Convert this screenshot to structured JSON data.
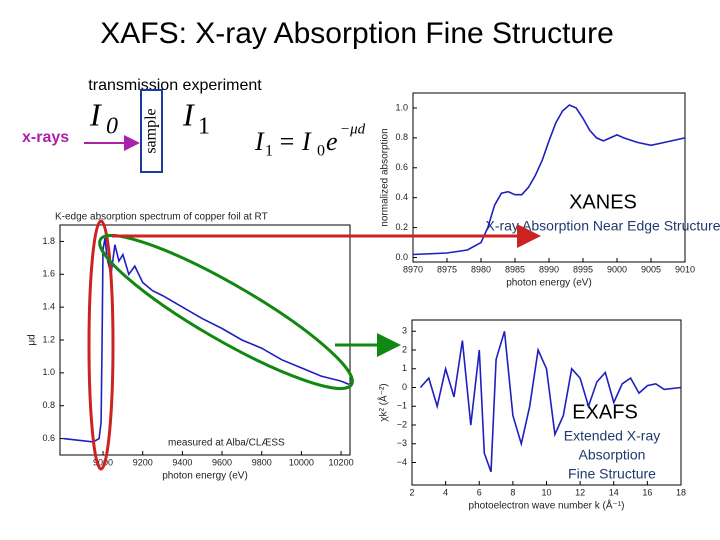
{
  "title": "XAFS: X-ray Absorption Fine Structure",
  "setup": {
    "label": "transmission experiment",
    "beam": "x-rays",
    "i0": "I",
    "i0_sub": "0",
    "sample": "sample",
    "i1": "I",
    "i1_sub": "1"
  },
  "equation": {
    "lhs": "I",
    "lhs_sub": "1",
    "rhs": "= I",
    "rhs_sub": "0",
    "base": "e",
    "exponent": "−μd"
  },
  "xanes": {
    "name": "XANES",
    "description": "X-ray Absorption Near Edge Structure"
  },
  "exafs": {
    "name": "EXAFS",
    "description_1": "Extended X-ray",
    "description_2": "Absorption",
    "description_3": "Fine Structure"
  },
  "chart_data": [
    {
      "type": "line",
      "title": "K-edge absorption spectrum of copper foil at RT",
      "annotation": "measured at Alba/CLÆSS",
      "xlabel": "photon energy (eV)",
      "ylabel": "μd",
      "x": [
        8800,
        8950,
        8980,
        8990,
        8995,
        9000,
        9010,
        9020,
        9040,
        9060,
        9080,
        9100,
        9130,
        9160,
        9200,
        9250,
        9300,
        9400,
        9500,
        9600,
        9700,
        9800,
        9900,
        10000,
        10100,
        10200,
        10240
      ],
      "series": [
        {
          "color": "#1f1fbf",
          "values": [
            0.6,
            0.58,
            0.6,
            0.7,
            1.2,
            1.75,
            1.82,
            1.7,
            1.6,
            1.78,
            1.68,
            1.72,
            1.6,
            1.65,
            1.55,
            1.5,
            1.47,
            1.4,
            1.33,
            1.27,
            1.2,
            1.15,
            1.08,
            1.03,
            0.98,
            0.95,
            0.93
          ]
        }
      ],
      "xlim": [
        8783,
        10245
      ],
      "ylim": [
        0.5,
        1.9
      ],
      "xticks": [
        9000,
        9200,
        9400,
        9600,
        9800,
        10000,
        10200
      ],
      "yticks": [
        0.6,
        0.8,
        {
          "value": 1.0,
          "label": "1.0"
        },
        1.2,
        1.4,
        1.6,
        1.8
      ]
    },
    {
      "type": "line",
      "xlabel": "photon energy (eV)",
      "ylabel": "normalized absorption",
      "x": [
        8970,
        8975,
        8978,
        8980,
        8981,
        8982,
        8983,
        8984,
        8985,
        8986,
        8987,
        8988,
        8989,
        8990,
        8991,
        8992,
        8993,
        8994,
        8995,
        8996,
        8997,
        8998,
        8999,
        9000,
        9001,
        9003,
        9005,
        9007,
        9010
      ],
      "series": [
        {
          "color": "#1f1fbf",
          "values": [
            0.02,
            0.03,
            0.05,
            0.1,
            0.2,
            0.35,
            0.43,
            0.44,
            0.42,
            0.42,
            0.47,
            0.55,
            0.65,
            0.78,
            0.9,
            0.98,
            1.02,
            1.0,
            0.93,
            0.85,
            0.8,
            0.78,
            0.8,
            0.82,
            0.8,
            0.77,
            0.75,
            0.77,
            0.8
          ]
        }
      ],
      "xlim": [
        8970,
        9010
      ],
      "ylim": [
        -0.03,
        1.1
      ],
      "xticks": [
        8970,
        8975,
        8980,
        8985,
        8990,
        8995,
        9000,
        9005,
        9010
      ],
      "yticks": [
        {
          "value": 0.0,
          "label": "0.0"
        },
        0.2,
        0.4,
        0.6,
        0.8,
        {
          "value": 1.0,
          "label": "1.0"
        }
      ]
    },
    {
      "type": "line",
      "xlabel": "photoelectron wave number k (Å⁻¹)",
      "ylabel": "χk² (Å⁻²)",
      "x": [
        2.5,
        3,
        3.5,
        4,
        4.5,
        5,
        5.5,
        6,
        6.3,
        6.7,
        7,
        7.5,
        8,
        8.5,
        9,
        9.5,
        10,
        10.5,
        11,
        11.5,
        12,
        12.5,
        13,
        13.5,
        14,
        14.5,
        15,
        15.5,
        16,
        16.5,
        17,
        18
      ],
      "series": [
        {
          "color": "#1f1fbf",
          "values": [
            0,
            0.5,
            -1,
            1,
            -0.5,
            2.5,
            -2,
            2,
            -3.5,
            -4.5,
            1.5,
            3,
            -1.5,
            -3,
            -1,
            2,
            1,
            -2.5,
            -1.5,
            1,
            0.5,
            -1,
            0.3,
            0.8,
            -0.8,
            0.2,
            0.5,
            -0.3,
            0.1,
            0.2,
            -0.1,
            0
          ]
        }
      ],
      "xlim": [
        2,
        18
      ],
      "ylim": [
        -5.2,
        3.6
      ],
      "xticks": [
        2,
        4,
        6,
        8,
        10,
        12,
        14,
        16,
        18
      ],
      "yticks": [
        {
          "value": -4,
          "label": "−4"
        },
        {
          "value": -3,
          "label": "−3"
        },
        {
          "value": -2,
          "label": "−2"
        },
        {
          "value": -1,
          "label": "−1"
        },
        0,
        1,
        2,
        3
      ]
    }
  ]
}
